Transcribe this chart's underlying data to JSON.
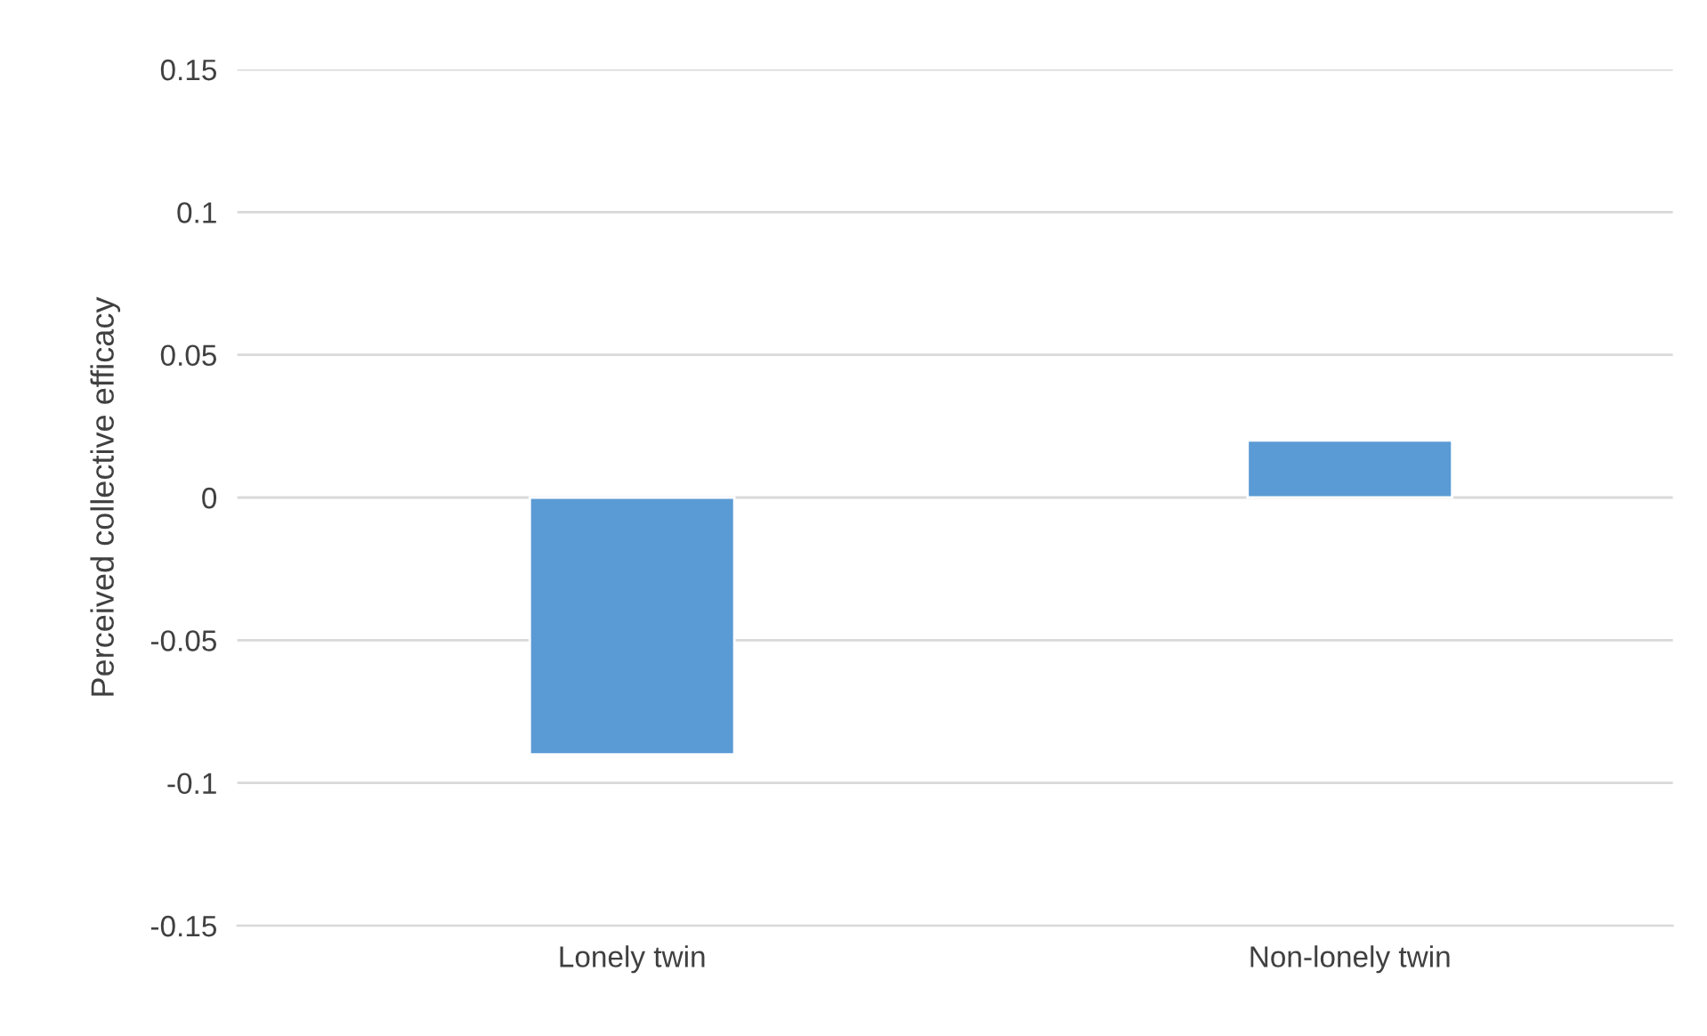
{
  "chart_data": {
    "type": "bar",
    "ylabel": "Perceived collective efficacy",
    "categories": [
      "Lonely twin",
      "Non-lonely twin"
    ],
    "series": [
      {
        "color": "#5b9bd5",
        "values": [
          -0.09,
          0.02
        ]
      }
    ],
    "ylim": [
      -0.15,
      0.15
    ],
    "yticks": [
      -0.15,
      -0.1,
      -0.05,
      0,
      0.05,
      0.1,
      0.15
    ],
    "grid": "y"
  }
}
